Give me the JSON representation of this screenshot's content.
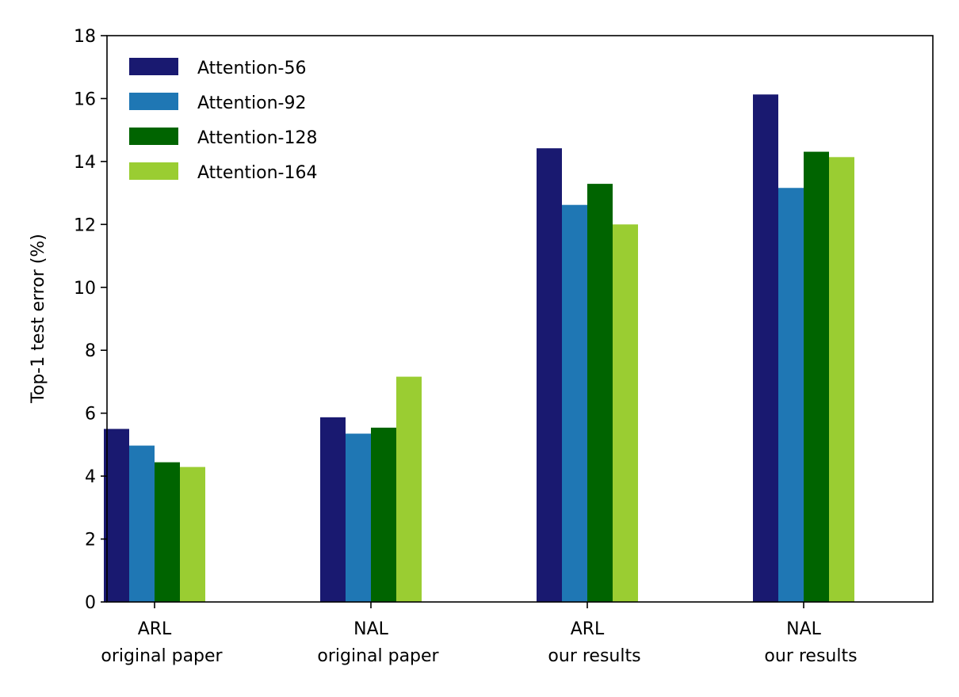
{
  "chart_data": {
    "type": "bar",
    "title": "",
    "xlabel": "",
    "ylabel": "Top-1 test error (%)",
    "ylim": [
      0,
      18
    ],
    "yticks": [
      0,
      2,
      4,
      6,
      8,
      10,
      12,
      14,
      16,
      18
    ],
    "grid": false,
    "legend_position": "top-left",
    "categories": [
      [
        "ARL",
        "original paper"
      ],
      [
        "NAL",
        "original paper"
      ],
      [
        "ARL",
        "our results"
      ],
      [
        "NAL",
        "our results"
      ]
    ],
    "series": [
      {
        "name": "Attention-56",
        "color": "#191970",
        "values": [
          5.5,
          5.87,
          14.42,
          16.13
        ]
      },
      {
        "name": "Attention-92",
        "color": "#1f77b4",
        "values": [
          4.97,
          5.35,
          12.62,
          13.16
        ]
      },
      {
        "name": "Attention-128",
        "color": "#006400",
        "values": [
          4.44,
          5.54,
          13.29,
          14.31
        ]
      },
      {
        "name": "Attention-164",
        "color": "#9acd32",
        "values": [
          4.29,
          7.16,
          12.0,
          14.14
        ]
      }
    ]
  }
}
